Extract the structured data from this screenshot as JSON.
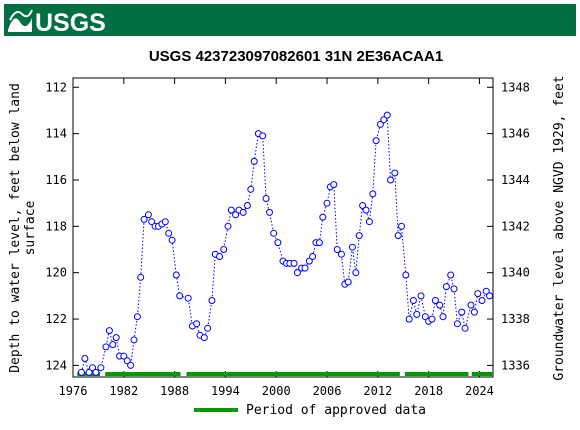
{
  "header": {
    "logo_text": "USGS",
    "brand_color": "#006F41"
  },
  "chart_data": {
    "type": "scatter",
    "title": "USGS 423723097082601  31N  2E36ACAA1",
    "ylabel_left": "Depth to water level, feet below land surface",
    "ylabel_left_lines": [
      "Depth to water level, feet below land",
      "surface"
    ],
    "ylabel_right": "Groundwater level above NGVD 1929, feet",
    "x_ticks": [
      1976,
      1982,
      1988,
      1994,
      2000,
      2006,
      2012,
      2018,
      2024
    ],
    "x_range": [
      1976.0,
      2025.6
    ],
    "y_left_ticks": [
      112,
      114,
      116,
      118,
      120,
      122,
      124
    ],
    "y_left_range": [
      111.6,
      124.5
    ],
    "y_left_inverted": true,
    "y_right_ticks": [
      1336,
      1338,
      1340,
      1342,
      1344,
      1346,
      1348
    ],
    "datum_offset": 1460,
    "grid": false,
    "series": [
      {
        "name": "",
        "color": "#0000ff",
        "marker": "open-circle",
        "line": "dotted",
        "x": [
          1977.0,
          1977.4,
          1977.9,
          1978.3,
          1978.7,
          1979.3,
          1979.9,
          1980.3,
          1980.7,
          1981.1,
          1981.5,
          1982.0,
          1982.4,
          1982.8,
          1983.2,
          1983.6,
          1984.0,
          1984.4,
          1984.9,
          1985.3,
          1985.7,
          1986.1,
          1986.5,
          1986.9,
          1987.3,
          1987.7,
          1988.2,
          1988.6,
          1989.6,
          1990.1,
          1990.6,
          1991.0,
          1991.5,
          1991.9,
          1992.4,
          1992.8,
          1993.3,
          1993.8,
          1994.3,
          1994.7,
          1995.2,
          1995.6,
          1996.1,
          1996.6,
          1997.0,
          1997.4,
          1997.9,
          1998.4,
          1998.8,
          1999.2,
          1999.7,
          2000.2,
          2000.8,
          2001.2,
          2001.6,
          2002.1,
          2002.5,
          2003.0,
          2003.4,
          2003.9,
          2004.3,
          2004.7,
          2005.1,
          2005.5,
          2006.0,
          2006.4,
          2006.8,
          2007.2,
          2007.7,
          2008.1,
          2008.5,
          2009.0,
          2009.4,
          2009.8,
          2010.2,
          2010.6,
          2011.0,
          2011.4,
          2011.8,
          2012.3,
          2012.7,
          2013.1,
          2013.5,
          2014.0,
          2014.4,
          2014.8,
          2015.3,
          2015.7,
          2016.2,
          2016.6,
          2017.1,
          2017.6,
          2018.0,
          2018.4,
          2018.8,
          2019.3,
          2019.7,
          2020.1,
          2020.6,
          2021.0,
          2021.4,
          2021.9,
          2022.3,
          2023.0,
          2023.4,
          2023.8,
          2024.3,
          2024.8,
          2025.2
        ],
        "y": [
          124.3,
          123.7,
          124.3,
          124.1,
          124.3,
          124.1,
          123.2,
          122.5,
          123.1,
          122.8,
          123.6,
          123.6,
          123.8,
          124.0,
          122.9,
          121.9,
          120.2,
          117.7,
          117.5,
          117.8,
          118.0,
          118.0,
          117.9,
          117.8,
          118.3,
          118.6,
          120.1,
          121.0,
          121.1,
          122.3,
          122.2,
          122.7,
          122.8,
          122.4,
          121.2,
          119.2,
          119.3,
          119.0,
          118.0,
          117.3,
          117.5,
          117.3,
          117.4,
          117.1,
          116.4,
          115.2,
          114.0,
          114.1,
          116.8,
          117.4,
          118.3,
          118.7,
          119.5,
          119.6,
          119.6,
          119.6,
          120.0,
          119.8,
          119.8,
          119.5,
          119.3,
          118.7,
          118.7,
          117.6,
          117.0,
          116.3,
          116.2,
          119.0,
          119.2,
          120.5,
          120.4,
          118.9,
          120.0,
          118.4,
          117.1,
          117.3,
          117.8,
          116.6,
          114.3,
          113.6,
          113.4,
          113.2,
          116.0,
          115.7,
          118.4,
          118.0,
          120.1,
          122.0,
          121.2,
          121.8,
          121.0,
          121.9,
          122.1,
          122.0,
          121.2,
          121.4,
          121.9,
          120.6,
          120.1,
          120.7,
          122.2,
          121.7,
          122.4,
          121.4,
          121.7,
          120.9,
          121.2,
          120.8,
          121.0
        ]
      }
    ],
    "approved_periods": [
      [
        1976.5,
        1979.2
      ],
      [
        1979.8,
        1988.7
      ],
      [
        1989.4,
        2014.6
      ],
      [
        2015.2,
        2022.7
      ],
      [
        2023.1,
        2025.5
      ]
    ],
    "approved_color": "#009900",
    "legend_label": "Period of approved data",
    "legend_position": "bottom-center"
  }
}
